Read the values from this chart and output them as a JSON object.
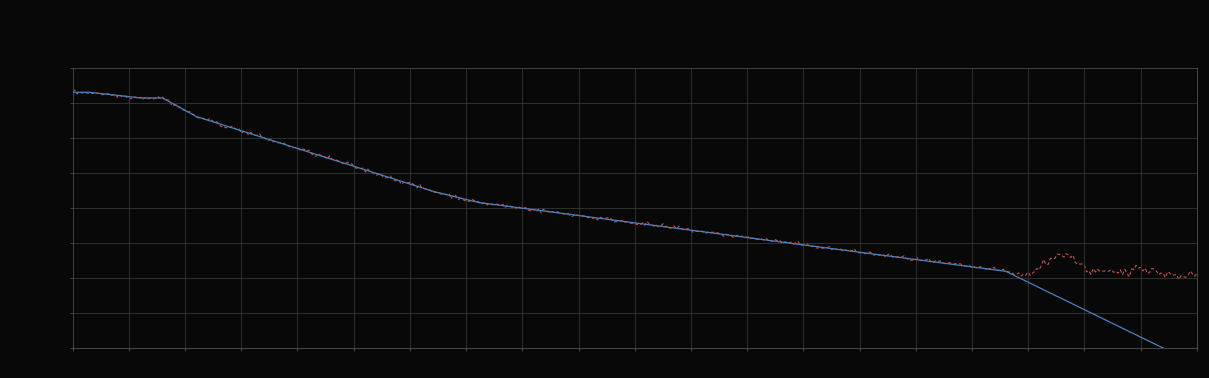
{
  "background_color": "#080808",
  "plot_bg_color": "#080808",
  "grid_color": "#404040",
  "line1_color": "#4f81bd",
  "line2_color": "#c0504d",
  "xlim": [
    0,
    100
  ],
  "ylim": [
    0,
    7.5
  ],
  "grid_nx": 20,
  "grid_ny": 8
}
